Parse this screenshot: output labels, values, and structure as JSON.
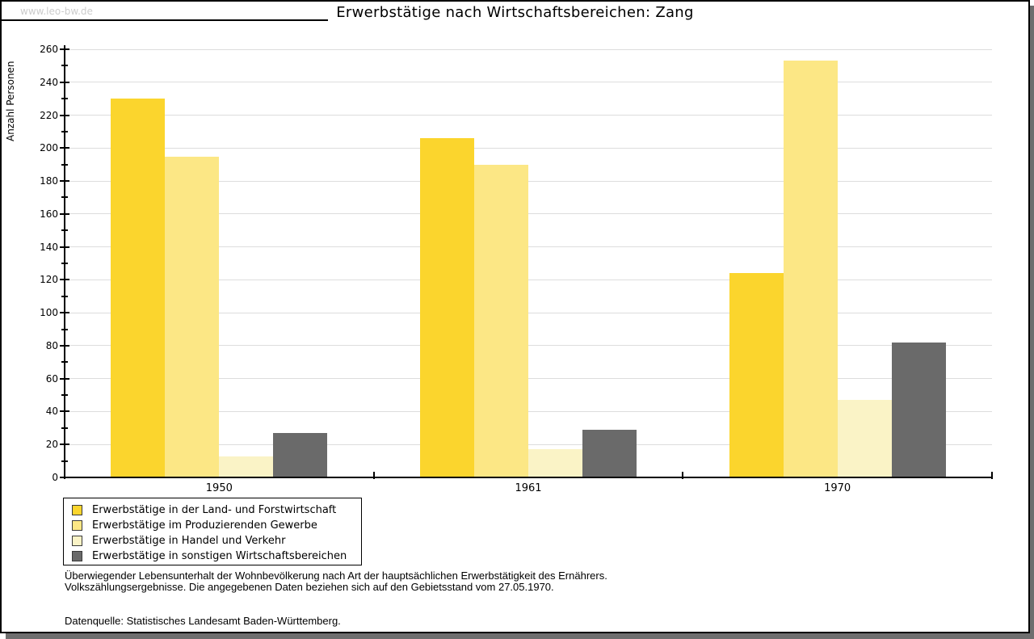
{
  "watermark": "www.leo-bw.de",
  "header": {
    "title": "Erwerbstätige nach Wirtschaftsbereichen: Zang"
  },
  "chart_data": {
    "type": "bar",
    "title": "Erwerbstätige nach Wirtschaftsbereichen: Zang",
    "xlabel": "",
    "ylabel": "Anzahl Personen",
    "categories": [
      "1950",
      "1961",
      "1970"
    ],
    "series": [
      {
        "name": "Erwerbstätige in der Land- und Forstwirtschaft",
        "color": "#FBD52D",
        "values": [
          230,
          206,
          124
        ]
      },
      {
        "name": "Erwerbstätige im Produzierenden Gewerbe",
        "color": "#FCE785",
        "values": [
          195,
          190,
          253
        ]
      },
      {
        "name": "Erwerbstätige in Handel und Verkehr",
        "color": "#FAF3C6",
        "values": [
          13,
          17,
          47
        ]
      },
      {
        "name": "Erwerbstätige in sonstigen Wirtschaftsbereichen",
        "color": "#6A6A6A",
        "values": [
          27,
          29,
          82
        ]
      }
    ],
    "ylim": [
      0,
      260
    ],
    "ytick_major": 20,
    "ytick_minor": 10,
    "grid": "horizontal",
    "legend_position": "bottom-left"
  },
  "colors": {
    "gridline": "#DDDDDD",
    "axis": "#000000",
    "watermark": "#CCCCCC",
    "shadow": "#6E6E6E",
    "frame": "#000000"
  },
  "footer": {
    "line1": "Überwiegender Lebensunterhalt der Wohnbevölkerung nach Art der hauptsächlichen Erwerbstätigkeit des Ernährers.",
    "line2": "Volkszählungsergebnisse. Die angegebenen Daten beziehen sich auf den Gebietsstand vom 27.05.1970.",
    "source": "Datenquelle: Statistisches Landesamt Baden-Württemberg."
  }
}
